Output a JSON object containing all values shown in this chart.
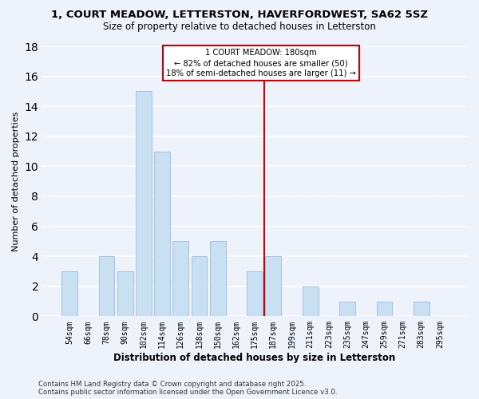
{
  "title": "1, COURT MEADOW, LETTERSTON, HAVERFORDWEST, SA62 5SZ",
  "subtitle": "Size of property relative to detached houses in Letterston",
  "xlabel": "Distribution of detached houses by size in Letterston",
  "ylabel": "Number of detached properties",
  "categories": [
    "54sqm",
    "66sqm",
    "78sqm",
    "90sqm",
    "102sqm",
    "114sqm",
    "126sqm",
    "138sqm",
    "150sqm",
    "162sqm",
    "175sqm",
    "187sqm",
    "199sqm",
    "211sqm",
    "223sqm",
    "235sqm",
    "247sqm",
    "259sqm",
    "271sqm",
    "283sqm",
    "295sqm"
  ],
  "values": [
    3,
    0,
    4,
    3,
    15,
    11,
    5,
    4,
    5,
    0,
    3,
    4,
    0,
    2,
    0,
    1,
    0,
    1,
    0,
    1,
    0
  ],
  "bar_color": "#c9dff2",
  "bar_edgecolor": "#a0c4e8",
  "vline_x": 10.5,
  "vline_color": "#cc0000",
  "ylim": [
    0,
    18
  ],
  "yticks": [
    0,
    2,
    4,
    6,
    8,
    10,
    12,
    14,
    16,
    18
  ],
  "annotation_title": "1 COURT MEADOW: 180sqm",
  "annotation_line1": "← 82% of detached houses are smaller (50)",
  "annotation_line2": "18% of semi-detached houses are larger (11) →",
  "annotation_box_edgecolor": "#cc0000",
  "background_color": "#eef2fb",
  "grid_color": "#ffffff",
  "footer1": "Contains HM Land Registry data © Crown copyright and database right 2025.",
  "footer2": "Contains public sector information licensed under the Open Government Licence v3.0."
}
